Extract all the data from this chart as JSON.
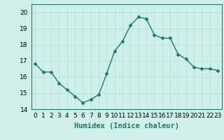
{
  "x": [
    0,
    1,
    2,
    3,
    4,
    5,
    6,
    7,
    8,
    9,
    10,
    11,
    12,
    13,
    14,
    15,
    16,
    17,
    18,
    19,
    20,
    21,
    22,
    23
  ],
  "y": [
    16.8,
    16.3,
    16.3,
    15.6,
    15.2,
    14.8,
    14.4,
    14.6,
    14.9,
    16.2,
    17.6,
    18.2,
    19.2,
    19.7,
    19.6,
    18.6,
    18.4,
    18.4,
    17.4,
    17.1,
    16.6,
    16.5,
    16.5,
    16.4
  ],
  "xlabel": "Humidex (Indice chaleur)",
  "ylim": [
    14,
    20.5
  ],
  "xlim": [
    -0.5,
    23.5
  ],
  "yticks": [
    14,
    15,
    16,
    17,
    18,
    19,
    20
  ],
  "xtick_labels": [
    "0",
    "1",
    "2",
    "3",
    "4",
    "5",
    "6",
    "7",
    "8",
    "9",
    "10",
    "11",
    "12",
    "13",
    "14",
    "15",
    "16",
    "17",
    "18",
    "19",
    "20",
    "21",
    "22",
    "23"
  ],
  "line_color": "#1a7a6e",
  "marker_color": "#1a7a6e",
  "bg_color": "#cff0ea",
  "grid_color": "#b8ddd8",
  "fig_bg": "#cff0ea",
  "marker": "D",
  "marker_size": 2.5,
  "line_width": 1.0,
  "xlabel_fontsize": 7.5,
  "tick_fontsize": 6.5
}
